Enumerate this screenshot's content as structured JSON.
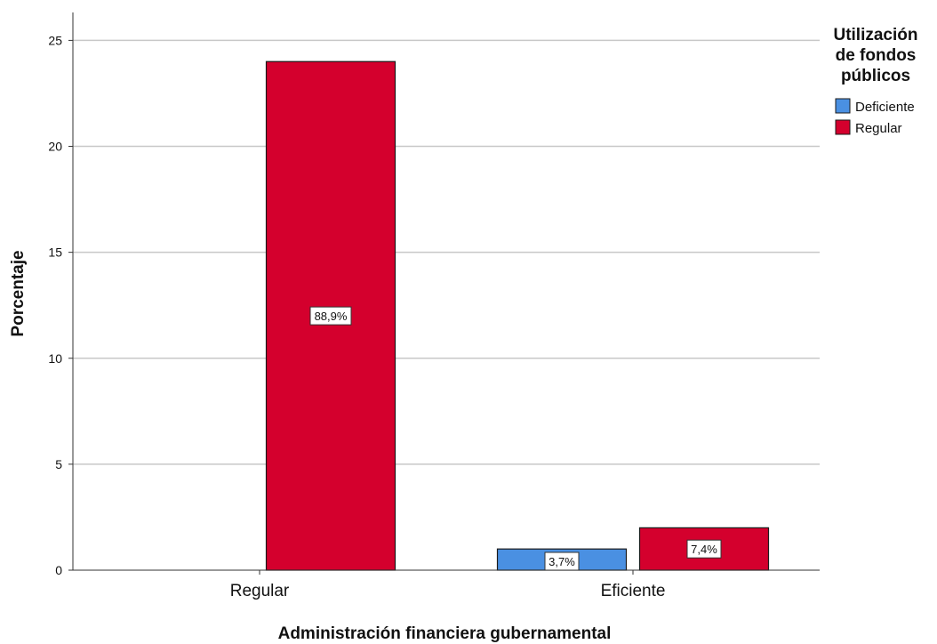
{
  "chart_data": {
    "type": "bar",
    "title": "",
    "xlabel": "Administración financiera gubernamental",
    "ylabel": "Porcentaje",
    "categories": [
      "Regular",
      "Eficiente"
    ],
    "series": [
      {
        "name": "Deficiente",
        "color": "#4a90e2",
        "values": [
          0,
          1
        ],
        "labels": [
          "",
          "3,7%"
        ]
      },
      {
        "name": "Regular",
        "color": "#d4002d",
        "values": [
          24,
          2
        ],
        "labels": [
          "88,9%",
          "7,4%"
        ]
      }
    ],
    "ylim": [
      0,
      26.5
    ],
    "yticks": [
      0,
      5,
      10,
      15,
      20,
      25
    ],
    "grid": true,
    "legend": {
      "title_lines": [
        "Utilización",
        "de fondos",
        "públicos"
      ],
      "placement": "top-right"
    }
  }
}
